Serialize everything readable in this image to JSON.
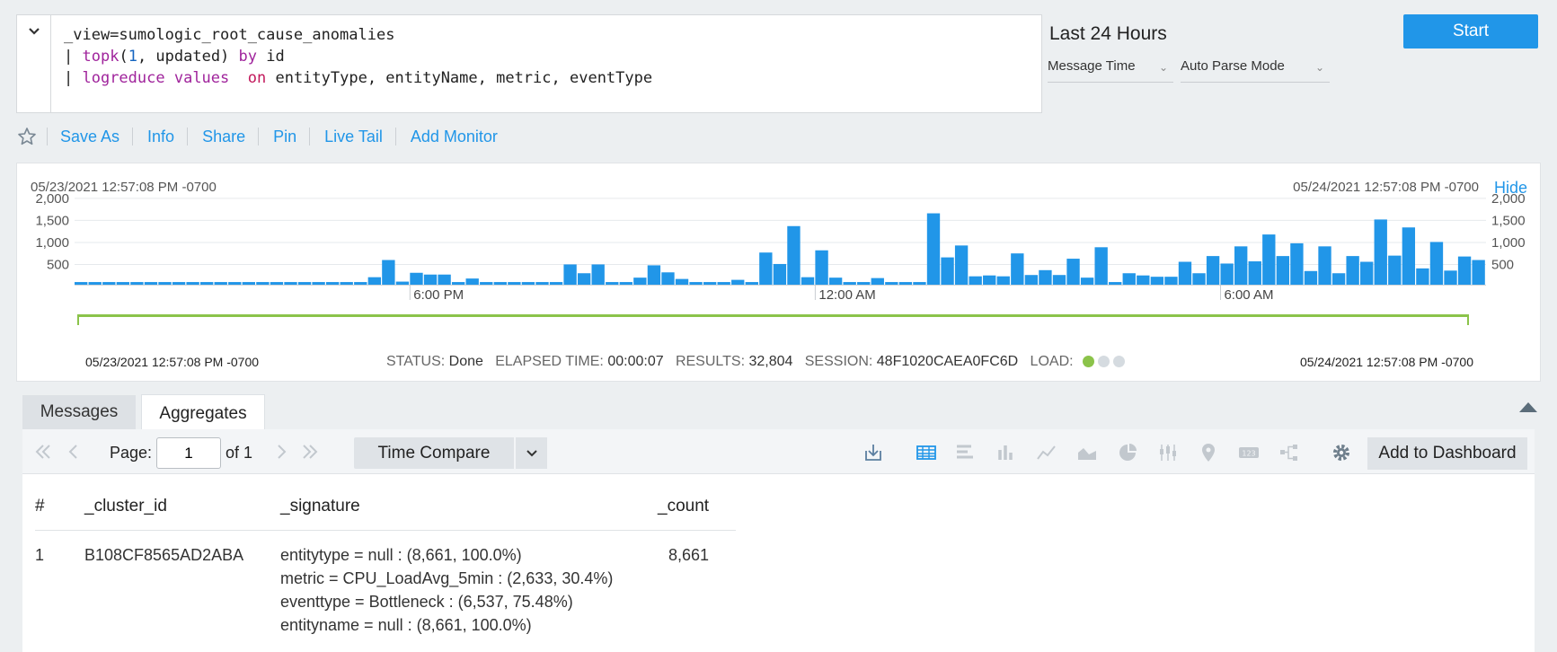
{
  "query": {
    "line1": "_view=sumologic_root_cause_anomalies",
    "line2_pipe": "| ",
    "line2_fn": "topk",
    "line2_open": "(",
    "line2_num": "1",
    "line2_rest": ", updated) ",
    "line2_by": "by",
    "line2_id": " id",
    "line3_pipe": "| ",
    "line3_fn": "logreduce",
    "line3_values": " values",
    "line3_gap": "  ",
    "line3_on": "on",
    "line3_rest": " entityType, entityName, metric, eventType"
  },
  "time_range": {
    "label": "Last 24 Hours",
    "time_field": "Message Time",
    "parse_mode": "Auto Parse Mode"
  },
  "start_button": "Start",
  "actions": [
    "Save As",
    "Info",
    "Share",
    "Pin",
    "Live Tail",
    "Add Monitor"
  ],
  "histogram": {
    "start_date": "05/23/2021 12:57:08 PM -0700",
    "end_date": "05/24/2021 12:57:08 PM -0700",
    "hide_label": "Hide",
    "footer_start": "05/23/2021 12:57:08 PM -0700",
    "footer_end": "05/24/2021 12:57:08 PM -0700",
    "status_label": "STATUS:",
    "status_value": "Done",
    "elapsed_label": "ELAPSED TIME:",
    "elapsed_value": "00:00:07",
    "results_label": "RESULTS:",
    "results_value": "32,804",
    "session_label": "SESSION:",
    "session_value": "48F1020CAEA0FC6D",
    "load_label": "LOAD:",
    "load_level": 1,
    "load_colors": [
      "#8bc34a",
      "#d5dbe0",
      "#d5dbe0"
    ]
  },
  "chart_data": {
    "type": "bar",
    "yticks": [
      "2,000",
      "1,500",
      "1,000",
      "500"
    ],
    "ytick_values": [
      2000,
      1500,
      1000,
      500
    ],
    "ylim": [
      0,
      2100
    ],
    "xticks": [
      {
        "label": "6:00 PM",
        "index": 24
      },
      {
        "label": "12:00 AM",
        "index": 53
      },
      {
        "label": "6:00 AM",
        "index": 82
      }
    ],
    "values": [
      60,
      60,
      60,
      60,
      60,
      60,
      60,
      60,
      60,
      60,
      60,
      60,
      60,
      60,
      60,
      60,
      60,
      60,
      60,
      60,
      60,
      170,
      560,
      70,
      270,
      230,
      230,
      60,
      140,
      60,
      60,
      60,
      60,
      60,
      60,
      460,
      260,
      460,
      60,
      60,
      160,
      440,
      280,
      130,
      60,
      60,
      60,
      110,
      60,
      730,
      470,
      1330,
      170,
      780,
      160,
      60,
      60,
      150,
      60,
      60,
      60,
      1620,
      620,
      890,
      190,
      210,
      190,
      710,
      220,
      330,
      220,
      590,
      160,
      850,
      60,
      260,
      210,
      180,
      180,
      520,
      260,
      650,
      480,
      870,
      530,
      1140,
      650,
      940,
      310,
      870,
      260,
      650,
      520,
      1480,
      660,
      1300,
      370,
      970,
      320,
      640,
      560
    ],
    "color": "#2196e8"
  },
  "tabs": {
    "messages": "Messages",
    "aggregates": "Aggregates"
  },
  "pager": {
    "page_label": "Page:",
    "page_value": "1",
    "of_label": "of 1"
  },
  "toolbar": {
    "time_compare": "Time Compare",
    "add_to_dashboard": "Add to Dashboard"
  },
  "table": {
    "headers": [
      "#",
      "_cluster_id",
      "_signature",
      "_count"
    ],
    "rows": [
      {
        "num": "1",
        "cluster_id": "B108CF8565AD2ABA",
        "signature": [
          "entitytype = null : (8,661, 100.0%)",
          "metric = CPU_LoadAvg_5min : (2,633, 30.4%)",
          "eventtype = Bottleneck : (6,537, 75.48%)",
          "entityname = null : (8,661, 100.0%)"
        ],
        "count": "8,661"
      }
    ]
  }
}
